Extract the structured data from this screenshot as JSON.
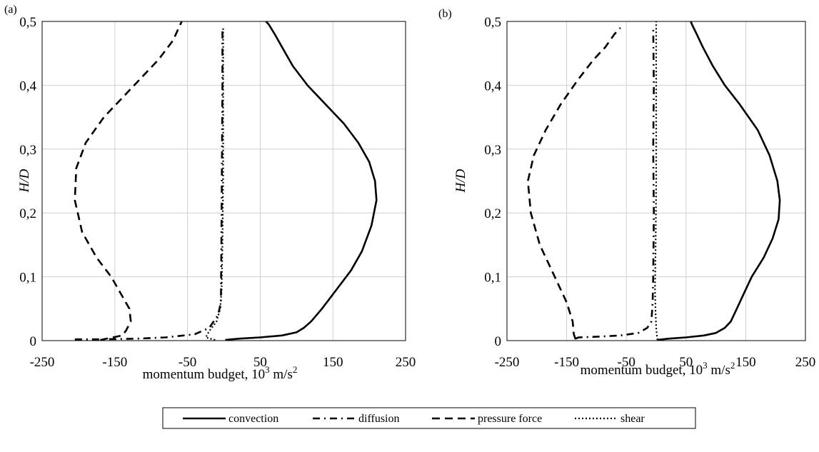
{
  "legend": [
    {
      "name": "convection",
      "dash": "solid",
      "color": "#000000"
    },
    {
      "name": "diffusion",
      "dash": "dashdot",
      "color": "#000000"
    },
    {
      "name": "pressure force",
      "dash": "dashed",
      "color": "#000000"
    },
    {
      "name": "shear",
      "dash": "dotted",
      "color": "#000000"
    }
  ],
  "chart_data": [
    {
      "type": "line",
      "panel_label": "(a)",
      "xlabel_main": "momentum budget, 10",
      "xlabel_exp1": "3",
      "xlabel_unit": " m/s",
      "xlabel_exp2": "2",
      "ylabel": "H/D",
      "xlim": [
        -250,
        250
      ],
      "ylim": [
        0,
        0.5
      ],
      "xticks": [
        "-250",
        "-150",
        "-50",
        "50",
        "150",
        "250"
      ],
      "yticks": [
        "0",
        "0,1",
        "0,2",
        "0,3",
        "0,4",
        "0,5"
      ],
      "grid": true,
      "series": [
        {
          "name": "convection",
          "x": [
            2,
            20,
            50,
            80,
            100,
            110,
            120,
            135,
            155,
            175,
            190,
            203,
            210,
            208,
            200,
            185,
            165,
            140,
            115,
            95,
            80,
            70,
            62,
            58
          ],
          "y": [
            0.001,
            0.003,
            0.005,
            0.008,
            0.013,
            0.02,
            0.03,
            0.05,
            0.08,
            0.11,
            0.14,
            0.18,
            0.22,
            0.25,
            0.28,
            0.31,
            0.34,
            0.37,
            0.4,
            0.43,
            0.46,
            0.48,
            0.495,
            0.5
          ]
        },
        {
          "name": "diffusion",
          "x": [
            -205,
            -170,
            -120,
            -80,
            -40,
            -20,
            -8,
            -4,
            -3,
            -2,
            -2
          ],
          "y": [
            0.002,
            0.002,
            0.003,
            0.005,
            0.01,
            0.02,
            0.04,
            0.06,
            0.2,
            0.4,
            0.49
          ]
        },
        {
          "name": "pressure force",
          "x": [
            -170,
            -140,
            -135,
            -128,
            -130,
            -140,
            -155,
            -175,
            -195,
            -205,
            -203,
            -190,
            -165,
            -140,
            -115,
            -90,
            -70,
            -58
          ],
          "y": [
            0.001,
            0.008,
            0.015,
            0.03,
            0.05,
            0.07,
            0.1,
            0.13,
            0.17,
            0.22,
            0.27,
            0.31,
            0.35,
            0.38,
            0.41,
            0.44,
            0.47,
            0.5
          ]
        },
        {
          "name": "shear",
          "x": [
            -12,
            -25,
            -20,
            -10,
            -5,
            -3,
            -2,
            -1,
            -1,
            -1,
            -1
          ],
          "y": [
            0.001,
            0.005,
            0.015,
            0.03,
            0.05,
            0.08,
            0.15,
            0.25,
            0.35,
            0.45,
            0.49
          ]
        }
      ]
    },
    {
      "type": "line",
      "panel_label": "(b)",
      "xlabel_main": "momentum budget, 10",
      "xlabel_exp1": "3",
      "xlabel_unit": " m/s",
      "xlabel_exp2": "2",
      "ylabel": "H/D",
      "xlim": [
        -250,
        250
      ],
      "ylim": [
        0,
        0.5
      ],
      "xticks": [
        "-250",
        "-150",
        "-50",
        "50",
        "150",
        "250"
      ],
      "yticks": [
        "0",
        "0,1",
        "0,2",
        "0,3",
        "0,4",
        "0,5"
      ],
      "grid": true,
      "series": [
        {
          "name": "convection",
          "x": [
            2,
            20,
            50,
            80,
            100,
            115,
            125,
            135,
            145,
            160,
            180,
            195,
            205,
            207,
            203,
            190,
            170,
            140,
            115,
            95,
            78,
            68,
            60,
            58
          ],
          "y": [
            0.001,
            0.003,
            0.005,
            0.008,
            0.012,
            0.02,
            0.03,
            0.05,
            0.07,
            0.1,
            0.13,
            0.16,
            0.19,
            0.22,
            0.25,
            0.29,
            0.33,
            0.37,
            0.4,
            0.43,
            0.46,
            0.48,
            0.495,
            0.5
          ]
        },
        {
          "name": "diffusion",
          "x": [
            -135,
            -130,
            -100,
            -60,
            -30,
            -15,
            -8,
            -6,
            -5,
            -4,
            -5,
            -4,
            -5
          ],
          "y": [
            0.003,
            0.005,
            0.006,
            0.008,
            0.012,
            0.02,
            0.03,
            0.06,
            0.1,
            0.2,
            0.3,
            0.4,
            0.49
          ]
        },
        {
          "name": "pressure force",
          "x": [
            -135,
            -138,
            -140,
            -150,
            -170,
            -195,
            -210,
            -215,
            -205,
            -185,
            -160,
            -130,
            -105,
            -85,
            -70,
            -60
          ],
          "y": [
            0.002,
            0.01,
            0.03,
            0.06,
            0.1,
            0.15,
            0.2,
            0.25,
            0.29,
            0.33,
            0.37,
            0.41,
            0.44,
            0.46,
            0.48,
            0.49
          ]
        },
        {
          "name": "shear",
          "x": [
            2,
            1,
            0,
            -1,
            -2,
            -1,
            0,
            0,
            0,
            0
          ],
          "y": [
            0.001,
            0.01,
            0.02,
            0.04,
            0.08,
            0.15,
            0.25,
            0.35,
            0.45,
            0.5
          ]
        }
      ]
    }
  ]
}
